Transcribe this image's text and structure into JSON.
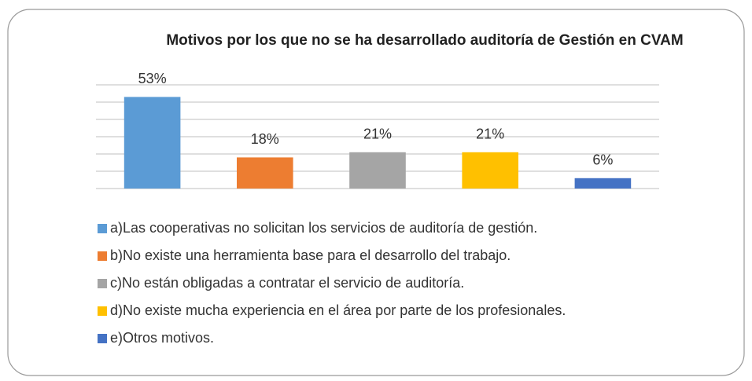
{
  "chart_data": {
    "type": "bar",
    "title": "Motivos por los que no se ha desarrollado auditoría de Gestión en CVAM",
    "categories": [
      "a)Las cooperativas no solicitan los servicios de auditoría de gestión.",
      "b)No existe una herramienta base para el desarrollo del trabajo.",
      "c)No están obligadas a contratar el servicio de auditoría.",
      "d)No existe mucha experiencia en el área por parte de los profesionales.",
      "e)Otros motivos."
    ],
    "values": [
      53,
      18,
      21,
      21,
      6
    ],
    "value_labels": [
      "53%",
      "18%",
      "21%",
      "21%",
      "6%"
    ],
    "colors": [
      "#5b9bd5",
      "#ed7d31",
      "#a5a5a5",
      "#ffc000",
      "#4472c4"
    ],
    "ylim": [
      0,
      60
    ],
    "yticks": [
      0,
      10,
      20,
      30,
      40,
      50,
      60
    ],
    "grid": true,
    "legend": "bottom"
  }
}
